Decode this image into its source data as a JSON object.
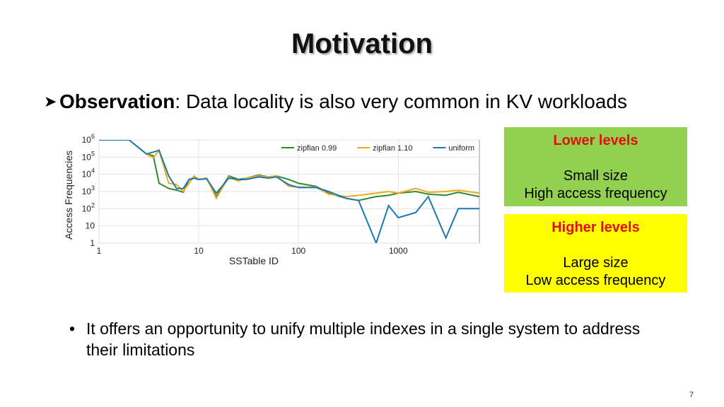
{
  "slide": {
    "title": "Motivation",
    "observation_label": "Observation",
    "observation_text": ": Data locality is also very common in KV workloads",
    "bullet": "It offers an opportunity to unify multiple indexes in a single system to address their limitations",
    "page_number": "7"
  },
  "boxes": [
    {
      "heading": "Lower levels",
      "line1": "Small size",
      "line2": "High access frequency",
      "color": "#92d050"
    },
    {
      "heading": "Higher levels",
      "line1": "Large size",
      "line2": "Low access frequency",
      "color": "#ffff00"
    }
  ],
  "chart_data": {
    "type": "line",
    "xlabel": "SSTable ID",
    "ylabel": "Access Frequencies",
    "x_scale": "log",
    "y_scale": "log",
    "xlim": [
      1,
      6500
    ],
    "ylim": [
      1,
      1000000
    ],
    "x_ticks": [
      "1",
      "10",
      "100",
      "1000"
    ],
    "y_ticks": [
      "1",
      "10",
      "10^2",
      "10^3",
      "10^4",
      "10^5",
      "10^6"
    ],
    "grid": true,
    "legend_position": "top-right",
    "series": [
      {
        "name": "zipfian 0.99",
        "color": "#2e8b2e",
        "points": [
          [
            1,
            1000000
          ],
          [
            2,
            1000000
          ],
          [
            3,
            150000
          ],
          [
            3.5,
            120000
          ],
          [
            4,
            3000
          ],
          [
            5,
            1500
          ],
          [
            6,
            1200
          ],
          [
            7,
            900
          ],
          [
            8,
            5000
          ],
          [
            9,
            6000
          ],
          [
            10,
            5000
          ],
          [
            12,
            6000
          ],
          [
            15,
            500
          ],
          [
            20,
            8000
          ],
          [
            25,
            5000
          ],
          [
            30,
            6000
          ],
          [
            40,
            9000
          ],
          [
            50,
            7000
          ],
          [
            60,
            8000
          ],
          [
            80,
            5000
          ],
          [
            100,
            3000
          ],
          [
            150,
            2000
          ],
          [
            200,
            800
          ],
          [
            300,
            400
          ],
          [
            400,
            300
          ],
          [
            600,
            500
          ],
          [
            800,
            600
          ],
          [
            1000,
            800
          ],
          [
            1500,
            1000
          ],
          [
            2000,
            700
          ],
          [
            3000,
            600
          ],
          [
            4000,
            900
          ],
          [
            6500,
            500
          ]
        ]
      },
      {
        "name": "zipfian 1.10",
        "color": "#f0a820",
        "points": [
          [
            1,
            1000000
          ],
          [
            2,
            1000000
          ],
          [
            3,
            150000
          ],
          [
            3.5,
            90000
          ],
          [
            4,
            250000
          ],
          [
            5,
            3000
          ],
          [
            6,
            2500
          ],
          [
            7,
            1000
          ],
          [
            8,
            3000
          ],
          [
            9,
            8000
          ],
          [
            10,
            5000
          ],
          [
            12,
            6000
          ],
          [
            15,
            400
          ],
          [
            20,
            7000
          ],
          [
            25,
            4000
          ],
          [
            30,
            6000
          ],
          [
            40,
            8000
          ],
          [
            50,
            7000
          ],
          [
            60,
            8000
          ],
          [
            80,
            2000
          ],
          [
            100,
            1800
          ],
          [
            150,
            1800
          ],
          [
            200,
            700
          ],
          [
            300,
            500
          ],
          [
            400,
            600
          ],
          [
            600,
            800
          ],
          [
            800,
            1000
          ],
          [
            1000,
            800
          ],
          [
            1500,
            1500
          ],
          [
            2000,
            900
          ],
          [
            3000,
            1000
          ],
          [
            4000,
            1200
          ],
          [
            6500,
            800
          ]
        ]
      },
      {
        "name": "uniform",
        "color": "#1f77b4",
        "points": [
          [
            1,
            1000000
          ],
          [
            2,
            1000000
          ],
          [
            3,
            150000
          ],
          [
            4,
            250000
          ],
          [
            5,
            8000
          ],
          [
            6,
            1500
          ],
          [
            7,
            1500
          ],
          [
            8,
            5000
          ],
          [
            9,
            6000
          ],
          [
            10,
            5000
          ],
          [
            12,
            5500
          ],
          [
            15,
            800
          ],
          [
            20,
            6000
          ],
          [
            25,
            5000
          ],
          [
            30,
            5000
          ],
          [
            40,
            7000
          ],
          [
            50,
            6000
          ],
          [
            60,
            7000
          ],
          [
            80,
            2500
          ],
          [
            100,
            1700
          ],
          [
            150,
            1700
          ],
          [
            200,
            1000
          ],
          [
            300,
            400
          ],
          [
            400,
            300
          ],
          [
            600,
            1
          ],
          [
            800,
            150
          ],
          [
            1000,
            30
          ],
          [
            1500,
            60
          ],
          [
            2000,
            500
          ],
          [
            3000,
            2
          ],
          [
            4000,
            100
          ],
          [
            6500,
            100
          ]
        ]
      }
    ]
  }
}
